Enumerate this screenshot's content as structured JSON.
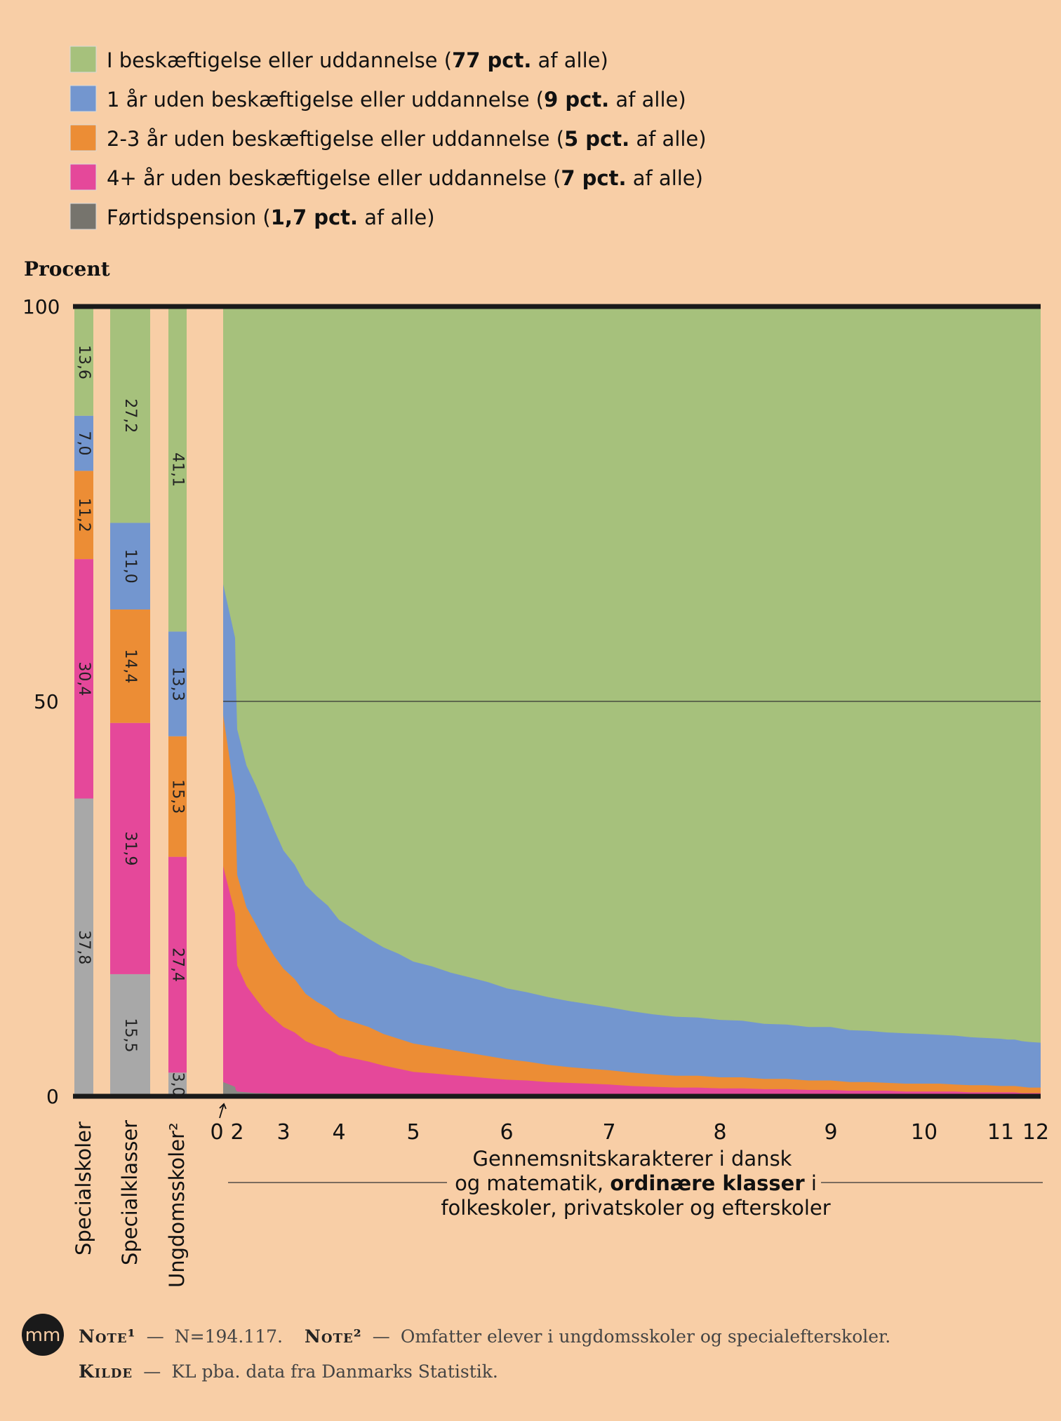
{
  "legend": [
    {
      "pre": "I beskæftigelse eller uddannelse (",
      "bold": "77 pct.",
      "post": " af alle)",
      "color": "#a6c17c"
    },
    {
      "pre": "1 år uden beskæftigelse eller uddannelse (",
      "bold": "9 pct.",
      "post": " af alle)",
      "color": "#7396cf"
    },
    {
      "pre": "2-3 år uden beskæftigelse eller uddannelse (",
      "bold": "5 pct.",
      "post": " af alle)",
      "color": "#ec8d35"
    },
    {
      "pre": "4+ år uden beskæftigelse eller uddannelse (",
      "bold": "7 pct.",
      "post": " af alle)",
      "color": "#e5489a"
    },
    {
      "pre": "Førtidspension (",
      "bold": "1,7 pct.",
      "post": " af alle)",
      "color": "#76746d"
    }
  ],
  "colors": {
    "green": "#a6c17c",
    "blue": "#7396cf",
    "orange": "#ec8d35",
    "pink": "#e5489a",
    "gray_bar": "#a8a8a8",
    "gray_area": "#8a8a84",
    "background": "#f8cea6",
    "axis": "#1a1a1a"
  },
  "chart_data": {
    "type": "area",
    "ylabel": "Procent",
    "ylim": [
      0,
      100
    ],
    "yticks": [
      "100",
      "50",
      "0"
    ],
    "bars": [
      {
        "category": "Specialskoler",
        "values": {
          "green": 13.6,
          "blue": 7.0,
          "orange": 11.2,
          "pink": 30.4,
          "gray": 37.8
        },
        "labels": [
          "13,6",
          "7,0",
          "11,2",
          "30,4",
          "37,8"
        ]
      },
      {
        "category": "Specialklasser",
        "values": {
          "green": 27.2,
          "blue": 11.0,
          "orange": 14.4,
          "pink": 31.9,
          "gray": 15.5
        },
        "labels": [
          "27,2",
          "11,0",
          "14,4",
          "31,9",
          "15,5"
        ]
      },
      {
        "category": "Ungdomsskoler²",
        "values": {
          "green": 41.1,
          "blue": 13.3,
          "orange": 15.3,
          "pink": 27.4,
          "gray": 3.0
        },
        "labels": [
          "41,1",
          "13,3",
          "15,3",
          "27,4",
          "3,0"
        ]
      }
    ],
    "area": {
      "x": [
        1.6,
        1.7,
        1.8,
        2.0,
        2.2,
        2.4,
        2.6,
        2.8,
        3.0,
        3.2,
        3.4,
        3.6,
        3.8,
        4.0,
        4.2,
        4.4,
        4.6,
        4.8,
        5.0,
        5.2,
        5.4,
        5.6,
        5.8,
        6.0,
        6.2,
        6.4,
        6.6,
        6.8,
        7.0,
        7.2,
        7.4,
        7.6,
        7.8,
        8.0,
        8.2,
        8.4,
        8.6,
        8.8,
        9.0,
        9.2,
        9.4,
        9.6,
        9.8,
        10.0,
        10.2,
        10.4,
        10.6,
        10.8,
        11.0,
        11.2,
        11.4,
        11.6,
        11.8,
        12.0
      ],
      "gray": [
        1.8,
        1.2,
        0.8,
        0.6,
        0.5,
        0.4,
        0.4,
        0.3,
        0.3,
        0.3,
        0.2,
        0.2,
        0.2,
        0.2,
        0.2,
        0.2,
        0.1,
        0.1,
        0.1,
        0.1,
        0.1,
        0.1,
        0.1,
        0.1,
        0.1,
        0.1,
        0.1,
        0.1,
        0.1,
        0.1,
        0.1,
        0.1,
        0.1,
        0.1,
        0.1,
        0.1,
        0.1,
        0.1,
        0.1,
        0.1,
        0.1,
        0.1,
        0.1,
        0.1,
        0.1,
        0.1,
        0.1,
        0.1,
        0.1,
        0.1,
        0.1,
        0.1,
        0.1,
        0.1
      ],
      "pink": [
        27.4,
        22.0,
        20.0,
        16.0,
        13.5,
        12.0,
        10.5,
        9.5,
        8.5,
        7.8,
        6.8,
        6.2,
        5.8,
        5.0,
        4.6,
        4.2,
        3.8,
        3.4,
        3.0,
        2.8,
        2.6,
        2.4,
        2.2,
        2.0,
        1.9,
        1.7,
        1.6,
        1.5,
        1.4,
        1.2,
        1.1,
        1.0,
        1.0,
        0.9,
        0.9,
        0.8,
        0.8,
        0.7,
        0.7,
        0.6,
        0.6,
        0.6,
        0.5,
        0.5,
        0.5,
        0.5,
        0.4,
        0.4,
        0.4,
        0.4,
        0.4,
        0.3,
        0.3,
        0.3
      ],
      "orange": [
        19.2,
        15.0,
        14.0,
        11.5,
        10.0,
        9.5,
        8.8,
        8.0,
        7.4,
        6.8,
        6.0,
        5.6,
        5.2,
        4.8,
        4.6,
        4.4,
        4.0,
        3.8,
        3.6,
        3.4,
        3.2,
        3.0,
        2.8,
        2.6,
        2.4,
        2.2,
        2.0,
        1.9,
        1.8,
        1.7,
        1.6,
        1.5,
        1.5,
        1.4,
        1.4,
        1.3,
        1.3,
        1.2,
        1.2,
        1.1,
        1.1,
        1.0,
        1.0,
        1.0,
        1.0,
        0.9,
        0.9,
        0.9,
        0.8,
        0.8,
        0.8,
        0.8,
        0.7,
        0.7
      ],
      "blue": [
        16.6,
        20.0,
        18.5,
        18.5,
        18.0,
        17.6,
        17.0,
        16.0,
        15.0,
        14.5,
        13.8,
        13.4,
        13.0,
        12.4,
        11.8,
        11.2,
        11.0,
        10.8,
        10.4,
        10.2,
        9.8,
        9.6,
        9.4,
        9.0,
        8.8,
        8.6,
        8.4,
        8.2,
        8.0,
        7.8,
        7.6,
        7.5,
        7.4,
        7.3,
        7.2,
        7.0,
        6.9,
        6.8,
        6.8,
        6.6,
        6.5,
        6.4,
        6.4,
        6.3,
        6.2,
        6.2,
        6.1,
        6.0,
        6.0,
        5.9,
        5.9,
        5.8,
        5.8,
        5.7
      ]
    },
    "x_ticks": [
      "0",
      "2",
      "3",
      "4",
      "5",
      "6",
      "7",
      "8",
      "9",
      "10",
      "11",
      "12"
    ],
    "x_title_lines": [
      "Gennemsnitskarakterer i dansk",
      "og matematik, ",
      "ordinære klasser",
      " i",
      "folkeskoler, privatskoler og efterskoler"
    ]
  },
  "notes": {
    "logo": "mm",
    "note1_label": "Note¹",
    "note1_text": "N=194.117.",
    "note2_label": "Note²",
    "note2_text": "Omfatter elever i ungdomsskoler og specialefterskoler.",
    "source_label": "Kilde",
    "source_text": "KL pba. data fra Danmarks Statistik.",
    "dash": "—"
  }
}
